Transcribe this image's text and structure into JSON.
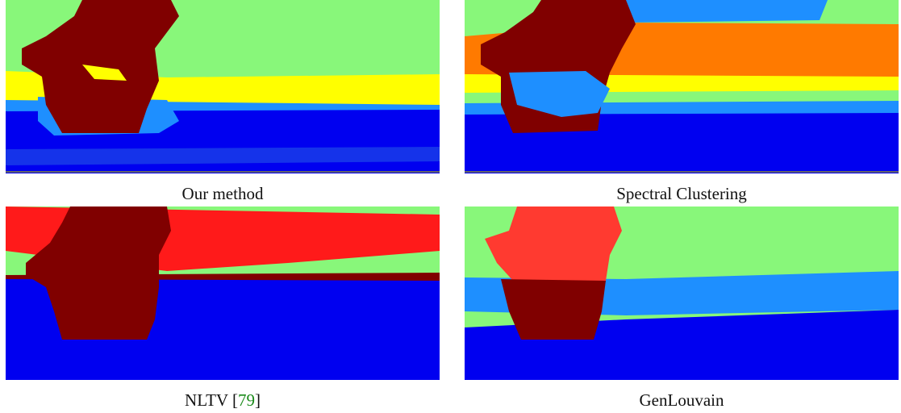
{
  "panels": [
    {
      "caption": [
        "Our method"
      ]
    },
    {
      "caption": [
        "Spectral Clustering"
      ]
    },
    {
      "caption": [
        "NLTV [",
        "79",
        "]"
      ]
    },
    {
      "caption": [
        "GenLouvain"
      ]
    }
  ]
}
